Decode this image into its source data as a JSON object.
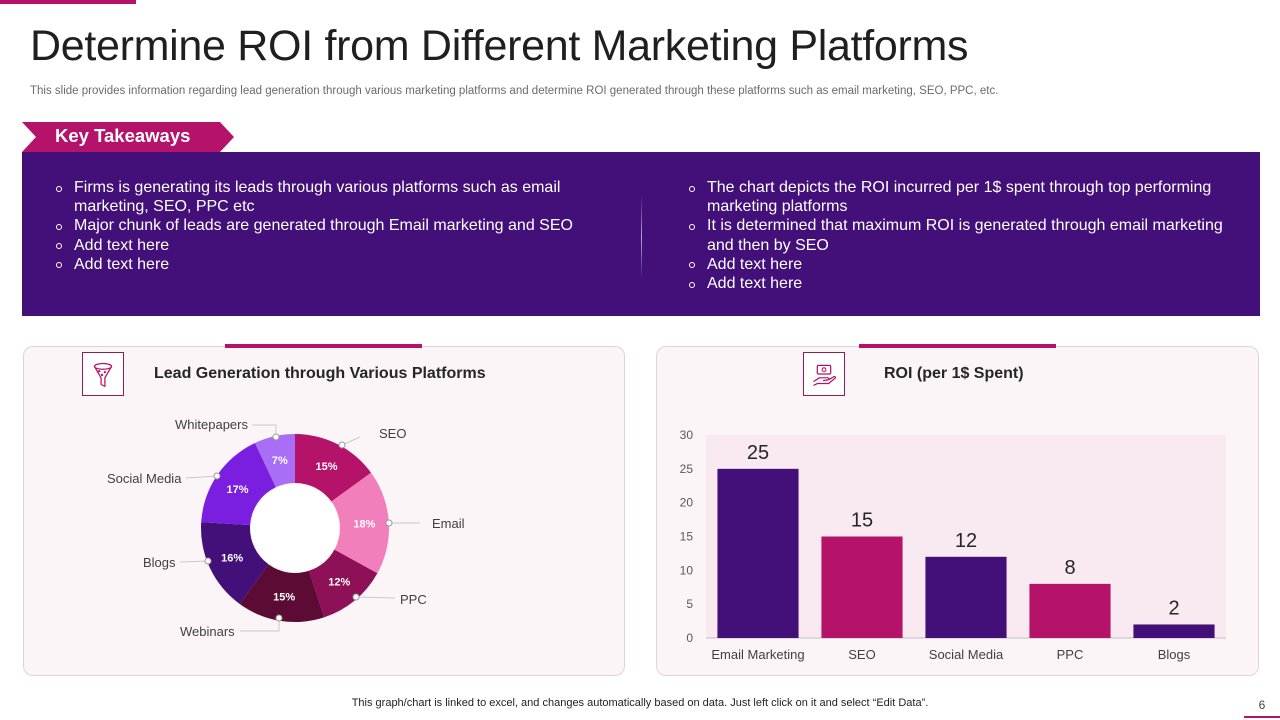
{
  "slide": {
    "title": "Determine ROI from Different Marketing Platforms",
    "subtitle": "This slide provides information regarding lead generation through various marketing platforms and determine ROI generated through these platforms such as email marketing, SEO, PPC, etc.",
    "page_number": "6",
    "footer_note": "This graph/chart is linked to excel,  and changes automatically based on data. Just left click on it and select “Edit Data”."
  },
  "key_takeaways": {
    "label": "Key Takeaways",
    "left_bullets": [
      "Firms is generating its leads through  various platforms  such as email marketing, SEO, PPC etc",
      "Major chunk  of leads are generated through  Email marketing and SEO",
      "Add text here",
      "Add text here"
    ],
    "right_bullets": [
      "The chart depicts the ROI incurred per 1$ spent through top performing marketing platforms",
      "It is determined that maximum ROI is generated through email marketing and then by SEO",
      "Add text here",
      "Add text here"
    ]
  },
  "colors": {
    "accent": "#b5126a",
    "dark_purple": "#421078"
  },
  "icons": {
    "lead_panel": "funnel-icon",
    "roi_panel": "hand-money-icon"
  },
  "chart_data": [
    {
      "type": "pie",
      "title": "Lead Generation through  Various  Platforms",
      "categories": [
        "SEO",
        "Email",
        "PPC",
        "Webinars",
        "Blogs",
        "Social Media",
        "Whitepapers"
      ],
      "values": [
        15,
        18,
        12,
        15,
        16,
        17,
        7
      ],
      "value_labels": [
        "15%",
        "18%",
        "12%",
        "15%",
        "16%",
        "17%",
        "7%"
      ],
      "colors": [
        "#b5126a",
        "#f07fbb",
        "#8e1056",
        "#5c0b35",
        "#421078",
        "#7a1fe0",
        "#a86ef5"
      ],
      "donut": true,
      "legend": "none"
    },
    {
      "type": "bar",
      "title": "ROI (per 1$ Spent)",
      "categories": [
        "Email Marketing",
        "SEO",
        "Social Media",
        "PPC",
        "Blogs"
      ],
      "values": [
        25,
        15,
        12,
        8,
        2
      ],
      "value_labels": [
        "25",
        "15",
        "12",
        "8",
        "2"
      ],
      "colors": [
        "#421078",
        "#b5126a",
        "#421078",
        "#b5126a",
        "#421078"
      ],
      "ylim": [
        0,
        30
      ],
      "yticks": [
        "0",
        "5",
        "10",
        "15",
        "20",
        "25",
        "30"
      ],
      "xlabel": "",
      "ylabel": "",
      "grid": false,
      "legend": "none"
    }
  ]
}
